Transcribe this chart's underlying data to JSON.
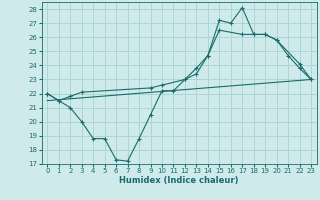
{
  "xlabel": "Humidex (Indice chaleur)",
  "ylabel": "",
  "bg_color": "#ceeaea",
  "grid_color": "#aed4d4",
  "line_color": "#1a6b6b",
  "xlim": [
    -0.5,
    23.5
  ],
  "ylim": [
    17,
    28.5
  ],
  "xticks": [
    0,
    1,
    2,
    3,
    4,
    5,
    6,
    7,
    8,
    9,
    10,
    11,
    12,
    13,
    14,
    15,
    16,
    17,
    18,
    19,
    20,
    21,
    22,
    23
  ],
  "yticks": [
    17,
    18,
    19,
    20,
    21,
    22,
    23,
    24,
    25,
    26,
    27,
    28
  ],
  "series1_x": [
    0,
    1,
    2,
    3,
    4,
    5,
    6,
    7,
    8,
    9,
    10,
    11,
    12,
    13,
    14,
    15,
    16,
    17,
    18,
    19,
    20,
    21,
    22,
    23
  ],
  "series1_y": [
    22.0,
    21.5,
    21.0,
    20.0,
    18.8,
    18.8,
    17.3,
    17.2,
    18.8,
    20.5,
    22.2,
    22.2,
    23.0,
    23.8,
    24.7,
    27.2,
    27.0,
    28.1,
    26.2,
    26.2,
    25.8,
    24.7,
    23.8,
    23.0
  ],
  "series2_x": [
    0,
    1,
    2,
    3,
    9,
    10,
    12,
    13,
    14,
    15,
    17,
    18,
    19,
    20,
    22,
    23
  ],
  "series2_y": [
    22.0,
    21.5,
    21.8,
    22.1,
    22.4,
    22.6,
    23.0,
    23.4,
    24.7,
    26.5,
    26.2,
    26.2,
    26.2,
    25.8,
    24.1,
    23.0
  ],
  "series3_x": [
    0,
    23
  ],
  "series3_y": [
    21.5,
    23.0
  ]
}
